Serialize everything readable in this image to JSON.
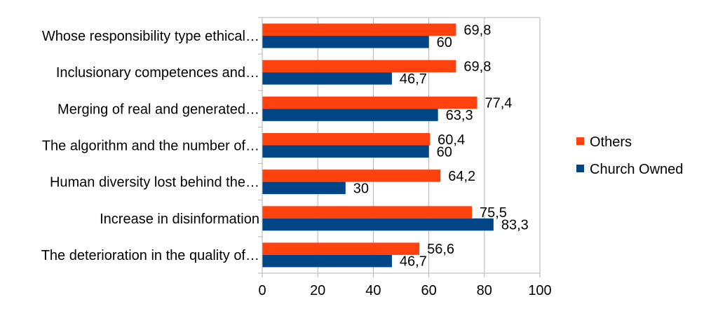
{
  "chart_data": {
    "type": "bar",
    "orientation": "horizontal",
    "title": "",
    "xlabel": "",
    "ylabel": "",
    "xlim": [
      0,
      100
    ],
    "xticks": [
      0,
      20,
      40,
      60,
      80,
      100
    ],
    "grid": true,
    "legend_position": "right",
    "categories": [
      "Whose responsibility type ethical…",
      "Inclusionary competences and…",
      "Merging of real and generated…",
      "The algorithm and the number of…",
      "Human diversity lost behind the…",
      "Increase in disinformation",
      "The deterioration in the quality of…"
    ],
    "series": [
      {
        "name": "Others",
        "color": "#ff420e",
        "values": [
          69.8,
          69.8,
          77.4,
          60.4,
          64.2,
          75.5,
          56.6
        ],
        "labels": [
          "69,8",
          "69,8",
          "77,4",
          "60,4",
          "64,2",
          "75,5",
          "56,6"
        ]
      },
      {
        "name": "Church Owned",
        "color": "#004586",
        "values": [
          60,
          46.7,
          63.3,
          60,
          30,
          83.3,
          46.7
        ],
        "labels": [
          "60",
          "46,7",
          "63,3",
          "60",
          "30",
          "83,3",
          "46,7"
        ]
      }
    ]
  }
}
